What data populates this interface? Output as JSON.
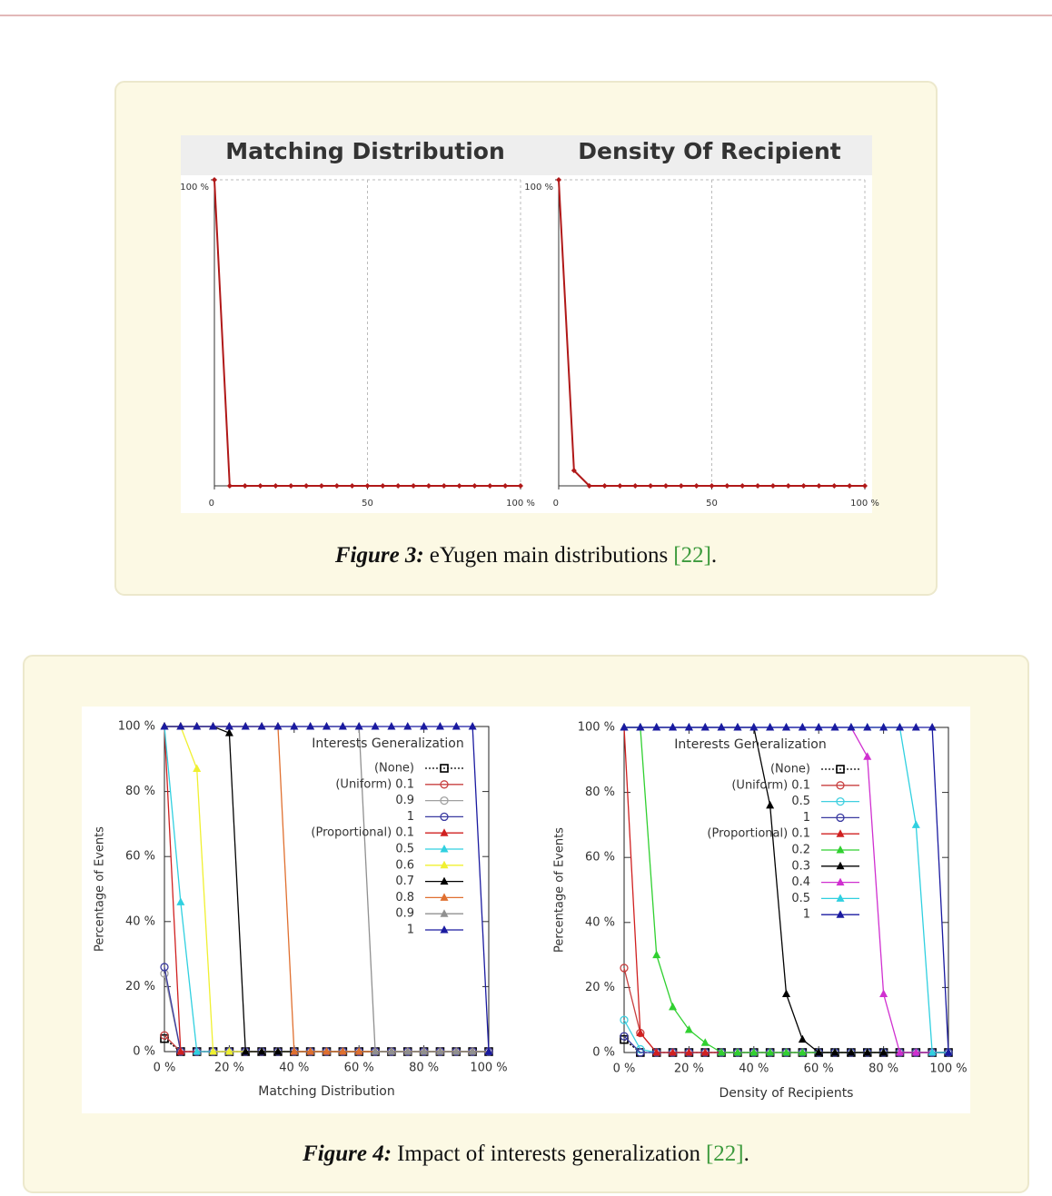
{
  "chart_data": [
    {
      "type": "line",
      "title": "Matching Distribution",
      "frame": "axes",
      "grid": true,
      "color": "#b01818",
      "marker": "diamond",
      "x": [
        0,
        5,
        10,
        15,
        20,
        25,
        30,
        35,
        40,
        45,
        50,
        55,
        60,
        65,
        70,
        75,
        80,
        85,
        90,
        95,
        100
      ],
      "values": [
        100,
        0,
        0,
        0,
        0,
        0,
        0,
        0,
        0,
        0,
        0,
        0,
        0,
        0,
        0,
        0,
        0,
        0,
        0,
        0,
        0
      ],
      "xlim": [
        0,
        100
      ],
      "ylim": [
        0,
        100
      ],
      "xticks": [
        0,
        50,
        {
          "value": 100,
          "label": "100 %"
        }
      ],
      "yticks": [
        {
          "value": 100,
          "label": "100 %"
        }
      ]
    },
    {
      "type": "line",
      "title": "Density Of Recipient",
      "frame": "axes",
      "grid": true,
      "color": "#b01818",
      "marker": "diamond",
      "x": [
        0,
        5,
        10,
        15,
        20,
        25,
        30,
        35,
        40,
        45,
        50,
        55,
        60,
        65,
        70,
        75,
        80,
        85,
        90,
        95,
        100
      ],
      "values": [
        100,
        5,
        0,
        0,
        0,
        0,
        0,
        0,
        0,
        0,
        0,
        0,
        0,
        0,
        0,
        0,
        0,
        0,
        0,
        0,
        0
      ],
      "xlim": [
        0,
        100
      ],
      "ylim": [
        0,
        100
      ],
      "xticks": [
        0,
        50,
        {
          "value": 100,
          "label": "100 %"
        }
      ],
      "yticks": [
        {
          "value": 100,
          "label": "100 %"
        }
      ]
    },
    {
      "type": "line",
      "frame": "box",
      "grid": false,
      "legend": true,
      "legend_title": "Interests Generalization",
      "x_label": "Matching Distribution",
      "y_label": "Percentage of Events",
      "x": [
        0,
        5,
        10,
        15,
        20,
        25,
        30,
        35,
        40,
        45,
        50,
        55,
        60,
        65,
        70,
        75,
        80,
        85,
        90,
        95,
        100
      ],
      "xlim": [
        0,
        100
      ],
      "ylim": [
        0,
        100
      ],
      "xticks": [
        {
          "value": 0,
          "label": "0 %"
        },
        {
          "value": 20,
          "label": "20 %"
        },
        {
          "value": 40,
          "label": "40 %"
        },
        {
          "value": 60,
          "label": "60 %"
        },
        {
          "value": 80,
          "label": "80 %"
        },
        {
          "value": 100,
          "label": "100 %"
        }
      ],
      "yticks": [
        {
          "value": 0,
          "label": "0 %"
        },
        {
          "value": 20,
          "label": "20 %"
        },
        {
          "value": 40,
          "label": "40 %"
        },
        {
          "value": 60,
          "label": "60 %"
        },
        {
          "value": 80,
          "label": "80 %"
        },
        {
          "value": 100,
          "label": "100 %"
        }
      ],
      "series": [
        {
          "name": "(None)",
          "color": "#000000",
          "marker": "square",
          "dash": true,
          "values": [
            4,
            0,
            0,
            0,
            0,
            0,
            0,
            0,
            0,
            0,
            0,
            0,
            0,
            0,
            0,
            0,
            0,
            0,
            0,
            0,
            0
          ]
        },
        {
          "name": "(Uniform) 0.1",
          "color": "#c84040",
          "marker": "circle",
          "values": [
            5,
            0,
            0,
            0,
            0,
            0,
            0,
            0,
            0,
            0,
            0,
            0,
            0,
            0,
            0,
            0,
            0,
            0,
            0,
            0,
            0
          ]
        },
        {
          "name": "0.9",
          "color": "#a0a0a0",
          "marker": "circle",
          "values": [
            24,
            0,
            0,
            0,
            0,
            0,
            0,
            0,
            0,
            0,
            0,
            0,
            0,
            0,
            0,
            0,
            0,
            0,
            0,
            0,
            0
          ]
        },
        {
          "name": "1",
          "color": "#3a3aa0",
          "marker": "circle",
          "values": [
            26,
            0,
            0,
            0,
            0,
            0,
            0,
            0,
            0,
            0,
            0,
            0,
            0,
            0,
            0,
            0,
            0,
            0,
            0,
            0,
            0
          ]
        },
        {
          "name": "(Proportional) 0.1",
          "color": "#d02020",
          "marker": "triangle",
          "values": [
            100,
            0,
            0,
            0,
            0,
            0,
            0,
            0,
            0,
            0,
            0,
            0,
            0,
            0,
            0,
            0,
            0,
            0,
            0,
            0,
            0
          ]
        },
        {
          "name": "0.5",
          "color": "#30d0e0",
          "marker": "triangle",
          "values": [
            100,
            46,
            0,
            0,
            0,
            0,
            0,
            0,
            0,
            0,
            0,
            0,
            0,
            0,
            0,
            0,
            0,
            0,
            0,
            0,
            0
          ]
        },
        {
          "name": "0.6",
          "color": "#f0f030",
          "marker": "triangle",
          "values": [
            100,
            100,
            87,
            0,
            0,
            0,
            0,
            0,
            0,
            0,
            0,
            0,
            0,
            0,
            0,
            0,
            0,
            0,
            0,
            0,
            0
          ]
        },
        {
          "name": "0.7",
          "color": "#000000",
          "marker": "triangle",
          "values": [
            100,
            100,
            100,
            100,
            98,
            0,
            0,
            0,
            0,
            0,
            0,
            0,
            0,
            0,
            0,
            0,
            0,
            0,
            0,
            0,
            0
          ]
        },
        {
          "name": "0.8",
          "color": "#e07030",
          "marker": "triangle",
          "values": [
            100,
            100,
            100,
            100,
            100,
            100,
            100,
            100,
            0,
            0,
            0,
            0,
            0,
            0,
            0,
            0,
            0,
            0,
            0,
            0,
            0
          ]
        },
        {
          "name": "0.9",
          "color": "#909090",
          "marker": "triangle",
          "values": [
            100,
            100,
            100,
            100,
            100,
            100,
            100,
            100,
            100,
            100,
            100,
            100,
            100,
            0,
            0,
            0,
            0,
            0,
            0,
            0,
            0
          ]
        },
        {
          "name": "1",
          "color": "#1a1aa0",
          "marker": "triangle",
          "values": [
            100,
            100,
            100,
            100,
            100,
            100,
            100,
            100,
            100,
            100,
            100,
            100,
            100,
            100,
            100,
            100,
            100,
            100,
            100,
            100,
            0
          ]
        }
      ]
    },
    {
      "type": "line",
      "frame": "box",
      "grid": false,
      "legend": true,
      "legend_title": "Interests Generalization",
      "x_label": "Density of Recipients",
      "y_label": "Percentage of Events",
      "x": [
        0,
        5,
        10,
        15,
        20,
        25,
        30,
        35,
        40,
        45,
        50,
        55,
        60,
        65,
        70,
        75,
        80,
        85,
        90,
        95,
        100
      ],
      "xlim": [
        0,
        100
      ],
      "ylim": [
        0,
        100
      ],
      "xticks": [
        {
          "value": 0,
          "label": "0 %"
        },
        {
          "value": 20,
          "label": "20 %"
        },
        {
          "value": 40,
          "label": "40 %"
        },
        {
          "value": 60,
          "label": "60 %"
        },
        {
          "value": 80,
          "label": "80 %"
        },
        {
          "value": 100,
          "label": "100 %"
        }
      ],
      "yticks": [
        {
          "value": 0,
          "label": "0 %"
        },
        {
          "value": 20,
          "label": "20 %"
        },
        {
          "value": 40,
          "label": "40 %"
        },
        {
          "value": 60,
          "label": "60 %"
        },
        {
          "value": 80,
          "label": "80 %"
        },
        {
          "value": 100,
          "label": "100 %"
        }
      ],
      "series": [
        {
          "name": "(None)",
          "color": "#000000",
          "marker": "square",
          "dash": true,
          "values": [
            4,
            0,
            0,
            0,
            0,
            0,
            0,
            0,
            0,
            0,
            0,
            0,
            0,
            0,
            0,
            0,
            0,
            0,
            0,
            0,
            0
          ]
        },
        {
          "name": "(Uniform) 0.1",
          "color": "#c84040",
          "marker": "circle",
          "values": [
            26,
            6,
            0,
            0,
            0,
            0,
            0,
            0,
            0,
            0,
            0,
            0,
            0,
            0,
            0,
            0,
            0,
            0,
            0,
            0,
            0
          ]
        },
        {
          "name": "0.5",
          "color": "#40d0e0",
          "marker": "circle",
          "values": [
            10,
            1,
            0,
            0,
            0,
            0,
            0,
            0,
            0,
            0,
            0,
            0,
            0,
            0,
            0,
            0,
            0,
            0,
            0,
            0,
            0
          ]
        },
        {
          "name": "1",
          "color": "#3a3aa0",
          "marker": "circle",
          "values": [
            5,
            0,
            0,
            0,
            0,
            0,
            0,
            0,
            0,
            0,
            0,
            0,
            0,
            0,
            0,
            0,
            0,
            0,
            0,
            0,
            0
          ]
        },
        {
          "name": "(Proportional) 0.1",
          "color": "#d02020",
          "marker": "triangle",
          "values": [
            100,
            6,
            0,
            0,
            0,
            0,
            0,
            0,
            0,
            0,
            0,
            0,
            0,
            0,
            0,
            0,
            0,
            0,
            0,
            0,
            0
          ]
        },
        {
          "name": "0.2",
          "color": "#30d030",
          "marker": "triangle",
          "values": [
            100,
            100,
            30,
            14,
            7,
            3,
            0,
            0,
            0,
            0,
            0,
            0,
            0,
            0,
            0,
            0,
            0,
            0,
            0,
            0,
            0
          ]
        },
        {
          "name": "0.3",
          "color": "#000000",
          "marker": "triangle",
          "values": [
            100,
            100,
            100,
            100,
            100,
            100,
            100,
            100,
            100,
            76,
            18,
            4,
            0,
            0,
            0,
            0,
            0,
            0,
            0,
            0,
            0
          ]
        },
        {
          "name": "0.4",
          "color": "#d030d0",
          "marker": "triangle",
          "values": [
            100,
            100,
            100,
            100,
            100,
            100,
            100,
            100,
            100,
            100,
            100,
            100,
            100,
            100,
            100,
            91,
            18,
            0,
            0,
            0,
            0
          ]
        },
        {
          "name": "0.5",
          "color": "#30d0e0",
          "marker": "triangle",
          "values": [
            100,
            100,
            100,
            100,
            100,
            100,
            100,
            100,
            100,
            100,
            100,
            100,
            100,
            100,
            100,
            100,
            100,
            100,
            70,
            0,
            0
          ]
        },
        {
          "name": "1",
          "color": "#1a1aa0",
          "marker": "triangle",
          "values": [
            100,
            100,
            100,
            100,
            100,
            100,
            100,
            100,
            100,
            100,
            100,
            100,
            100,
            100,
            100,
            100,
            100,
            100,
            100,
            100,
            0
          ]
        }
      ]
    }
  ],
  "figure_3_caption": {
    "label": "Figure 3:",
    "text": "eYugen main distributions",
    "ref": "[22]",
    "end": "."
  },
  "figure_4_caption": {
    "label": "Figure 4:",
    "text": "Impact of interests generalization",
    "ref": "[22]",
    "end": "."
  }
}
